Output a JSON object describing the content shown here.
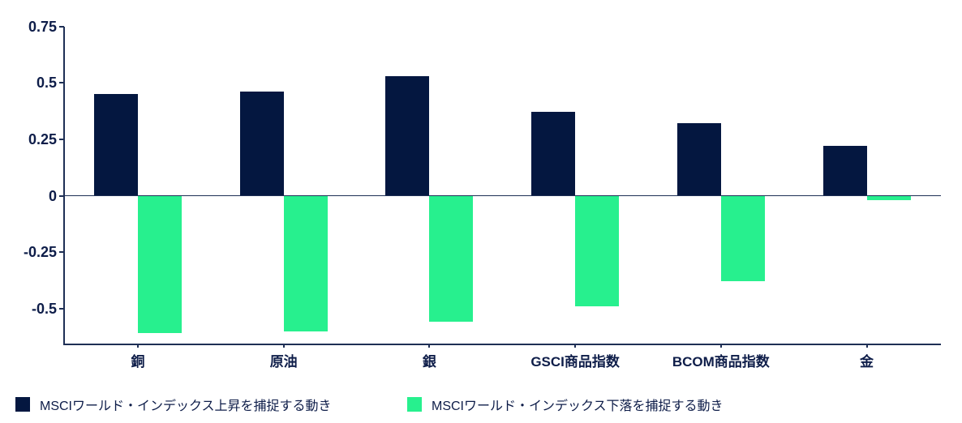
{
  "colors": {
    "up_bar": "#041740",
    "down_bar": "#27F08E",
    "axis": "#1E2F55",
    "text": "#0E1D49"
  },
  "chart_data": {
    "type": "bar",
    "title": "",
    "xlabel": "",
    "ylabel": "",
    "grid": false,
    "legend_position": "bottom",
    "categories": [
      "銅",
      "原油",
      "銀",
      "GSCI商品指数",
      "BCOM商品指数",
      "金"
    ],
    "series": [
      {
        "name": "MSCIワールド・インデックス上昇を捕捉する動き",
        "color": "#041740",
        "values": [
          0.45,
          0.46,
          0.53,
          0.37,
          0.32,
          0.22
        ]
      },
      {
        "name": "MSCIワールド・インデックス下落を捕捉する動き",
        "color": "#27F08E",
        "values": [
          -0.61,
          -0.6,
          -0.56,
          -0.49,
          -0.38,
          -0.02
        ]
      }
    ],
    "y_ticks": [
      {
        "label": "0.75",
        "value": 0.75
      },
      {
        "label": "0.5",
        "value": 0.5
      },
      {
        "label": "0.25",
        "value": 0.25
      },
      {
        "label": "0",
        "value": 0
      },
      {
        "label": "-0.25",
        "value": -0.25
      },
      {
        "label": "-0.5",
        "value": -0.5
      }
    ],
    "ylim": [
      -0.66,
      0.75
    ]
  }
}
